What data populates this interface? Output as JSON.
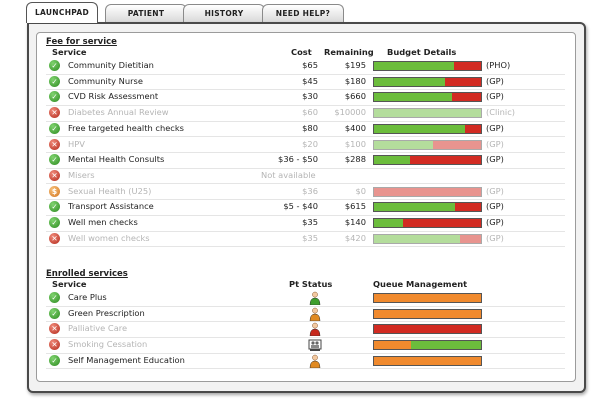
{
  "tabs": [
    {
      "label": "LAUNCHPAD",
      "active": true
    },
    {
      "label": "PATIENT",
      "active": false
    },
    {
      "label": "HISTORY",
      "active": false
    },
    {
      "label": "NEED HELP?",
      "active": false
    }
  ],
  "fee_for_service": {
    "title": "Fee for service",
    "headers": {
      "service": "Service",
      "cost": "Cost",
      "remaining": "Remaining",
      "budget": "Budget Details"
    },
    "rows": [
      {
        "status": "ok",
        "name": "Community Dietitian",
        "cost": "$65",
        "remaining": "$195",
        "budget_used": 0.75,
        "fund": "(PHO)",
        "disabled": false
      },
      {
        "status": "ok",
        "name": "Community Nurse",
        "cost": "$45",
        "remaining": "$180",
        "budget_used": 0.66,
        "fund": "(GP)",
        "disabled": false
      },
      {
        "status": "ok",
        "name": "CVD Risk Assessment",
        "cost": "$30",
        "remaining": "$660",
        "budget_used": 0.73,
        "fund": "(GP)",
        "disabled": false
      },
      {
        "status": "no",
        "name": "Diabetes Annual Review",
        "cost": "$60",
        "remaining": "$10000",
        "budget_used": 1.0,
        "fund": "(Clinic)",
        "disabled": true
      },
      {
        "status": "ok",
        "name": "Free targeted health checks",
        "cost": "$80",
        "remaining": "$400",
        "budget_used": 0.85,
        "fund": "(GP)",
        "disabled": false
      },
      {
        "status": "no",
        "name": "HPV",
        "cost": "$20",
        "remaining": "$100",
        "budget_used": 0.55,
        "fund": "(GP)",
        "disabled": true
      },
      {
        "status": "ok",
        "name": "Mental Health Consults",
        "cost": "$36 - $50",
        "remaining": "$288",
        "budget_used": 0.34,
        "fund": "(GP)",
        "disabled": false
      },
      {
        "status": "no",
        "name": "Misers",
        "cost": "Not available",
        "remaining": "",
        "budget_used": null,
        "fund": "",
        "disabled": true
      },
      {
        "status": "warn",
        "name": "Sexual Health (U25)",
        "cost": "$36",
        "remaining": "$0",
        "budget_used": 0.0,
        "fund": "(GP)",
        "disabled": true
      },
      {
        "status": "ok",
        "name": "Transport Assistance",
        "cost": "$5 - $40",
        "remaining": "$615",
        "budget_used": 0.76,
        "fund": "(GP)",
        "disabled": false
      },
      {
        "status": "ok",
        "name": "Well men checks",
        "cost": "$35",
        "remaining": "$140",
        "budget_used": 0.27,
        "fund": "(GP)",
        "disabled": false
      },
      {
        "status": "no",
        "name": "Well women checks",
        "cost": "$35",
        "remaining": "$420",
        "budget_used": 0.8,
        "fund": "(GP)",
        "disabled": true
      }
    ]
  },
  "enrolled_services": {
    "title": "Enrolled services",
    "headers": {
      "service": "Service",
      "pt_status": "Pt Status",
      "queue": "Queue Management"
    },
    "rows": [
      {
        "status": "ok",
        "name": "Care Plus",
        "pt_status": "green-person-icon",
        "queue_color": "#f08a2e",
        "queue_fill": 0.0,
        "queue_fill_color": "#f08a2e",
        "disabled": false
      },
      {
        "status": "ok",
        "name": "Green Prescription",
        "pt_status": "orange-person-icon",
        "queue_color": "#f08a2e",
        "queue_fill": 0.0,
        "queue_fill_color": "#f08a2e",
        "disabled": false
      },
      {
        "status": "no",
        "name": "Palliative Care",
        "pt_status": "red-person-icon",
        "queue_color": "#d22b22",
        "queue_fill": 0.0,
        "queue_fill_color": "#d22b22",
        "disabled": true
      },
      {
        "status": "no",
        "name": "Smoking Cessation",
        "pt_status": "team-icon",
        "queue_color": "#f08a2e",
        "queue_fill": 0.65,
        "queue_fill_color": "#6cbd3c",
        "disabled": true
      },
      {
        "status": "ok",
        "name": "Self Management Education",
        "pt_status": "orange-person-icon",
        "queue_color": "#f08a2e",
        "queue_fill": 0.0,
        "queue_fill_color": "#f08a2e",
        "disabled": false
      }
    ]
  },
  "colors": {
    "budget_used": "#6cbd3c",
    "budget_remaining": "#d22b22",
    "queue_orange": "#f08a2e"
  }
}
